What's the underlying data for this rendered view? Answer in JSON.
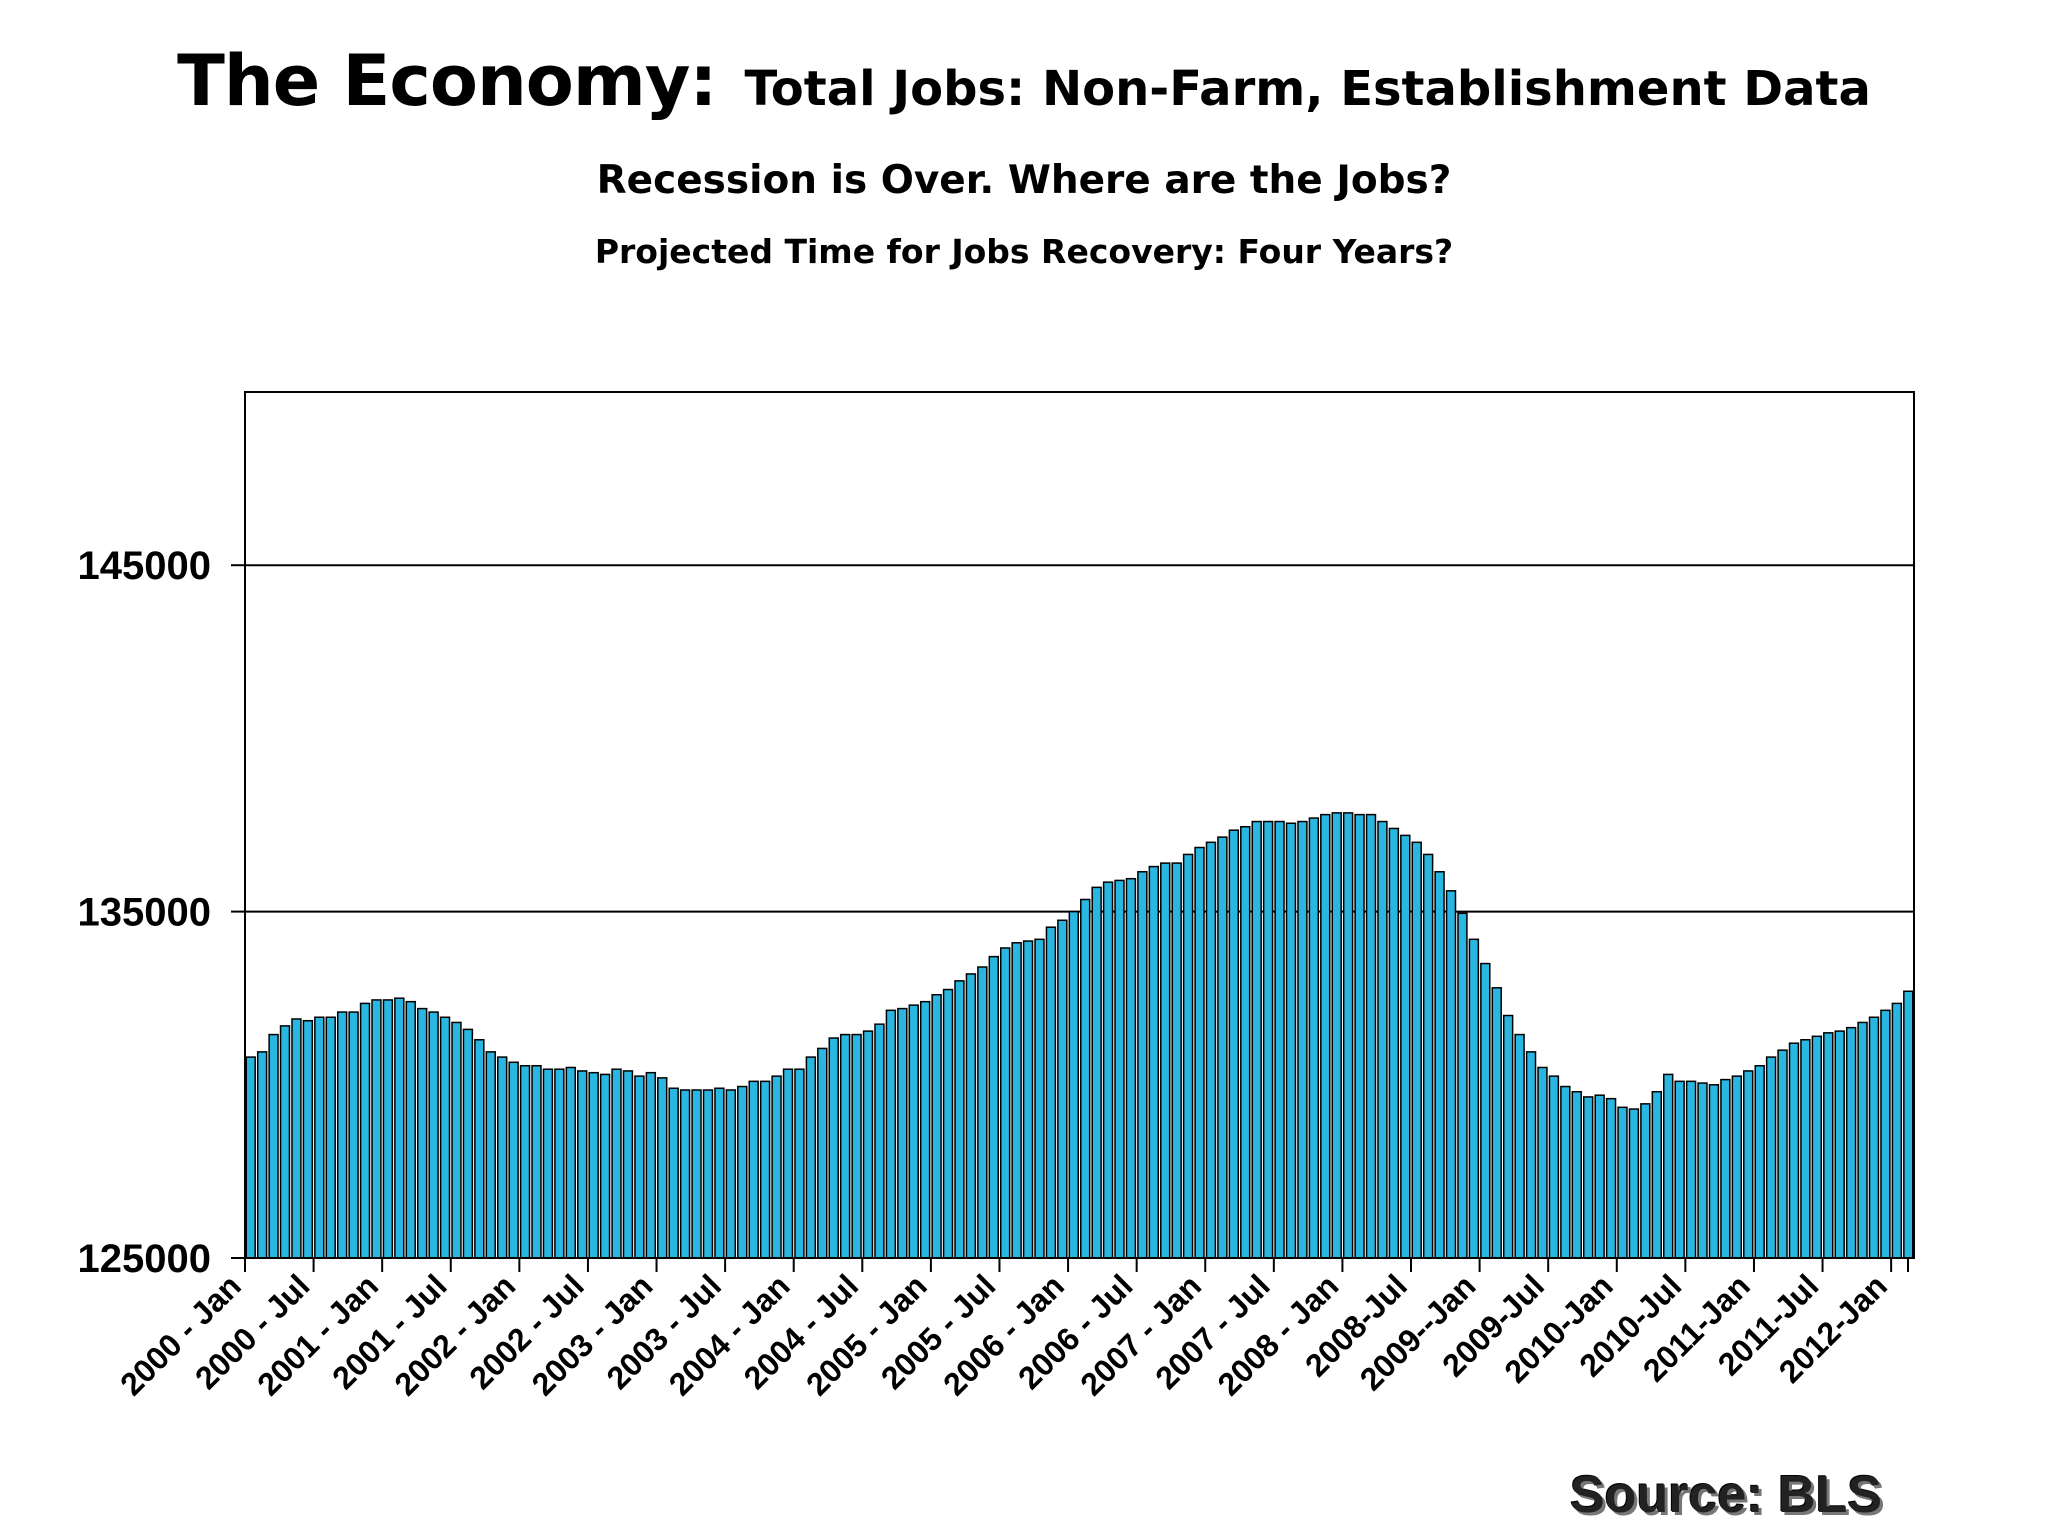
{
  "chart_data": {
    "type": "bar",
    "title": "The Economy:",
    "subtitle_inline": "Total Jobs:  Non-Farm, Establishment Data",
    "subtitle_2": "Recession is Over.  Where are the Jobs?",
    "subtitle_3": "Projected Time for Jobs Recovery:  Four Years?",
    "source": "Source: BLS",
    "ylim": [
      125000,
      150000
    ],
    "yticks": [
      125000,
      135000,
      145000
    ],
    "grid": true,
    "bar_color": "#29b6e0",
    "x_tick_labels": [
      "2000 - Jan",
      "2000 - Jul",
      "2001 - Jan",
      "2001 - Jul",
      "2002 - Jan",
      "2002 - Jul",
      "2003 - Jan",
      "2003 - Jul",
      "2004 - Jan",
      "2004 - Jul",
      "2005 - Jan",
      "2005 - Jul",
      "2006 - Jan",
      "2006 - Jul",
      "2007 - Jan",
      "2007 - Jul",
      "2008 - Jan",
      "2008-Jul",
      "2009--Jan",
      "2009-Jul",
      "2010-Jan",
      "2010-Jul",
      "2011-Jan",
      "2011-Jul",
      "2012-Jan"
    ],
    "values": [
      130800,
      130950,
      131450,
      131700,
      131900,
      131850,
      131950,
      131950,
      132100,
      132100,
      132350,
      132450,
      132450,
      132500,
      132400,
      132200,
      132100,
      131950,
      131800,
      131600,
      131300,
      130950,
      130800,
      130650,
      130550,
      130550,
      130450,
      130450,
      130500,
      130400,
      130350,
      130300,
      130450,
      130400,
      130250,
      130350,
      130200,
      129900,
      129850,
      129850,
      129850,
      129900,
      129850,
      129950,
      130100,
      130100,
      130250,
      130450,
      130450,
      130800,
      131050,
      131350,
      131450,
      131450,
      131550,
      131750,
      132150,
      132200,
      132300,
      132400,
      132600,
      132750,
      133000,
      133200,
      133400,
      133700,
      133950,
      134100,
      134150,
      134200,
      134550,
      134750,
      135000,
      135350,
      135700,
      135850,
      135900,
      135950,
      136150,
      136300,
      136400,
      136400,
      136650,
      136850,
      137000,
      137150,
      137350,
      137450,
      137600,
      137600,
      137600,
      137550,
      137600,
      137700,
      137800,
      137850,
      137850,
      137800,
      137800,
      137600,
      137400,
      137200,
      137000,
      136650,
      136150,
      135600,
      134950,
      134200,
      133500,
      132800,
      132000,
      131450,
      130950,
      130500,
      130250,
      129950,
      129800,
      129650,
      129700,
      129600,
      129350,
      129300,
      129450,
      129800,
      130300,
      130100,
      130100,
      130050,
      130000,
      130150,
      130250,
      130400,
      130550,
      130800,
      131000,
      131200,
      131300,
      131400,
      131500,
      131550,
      131650,
      131800,
      131950,
      132150,
      132350,
      132700
    ]
  }
}
